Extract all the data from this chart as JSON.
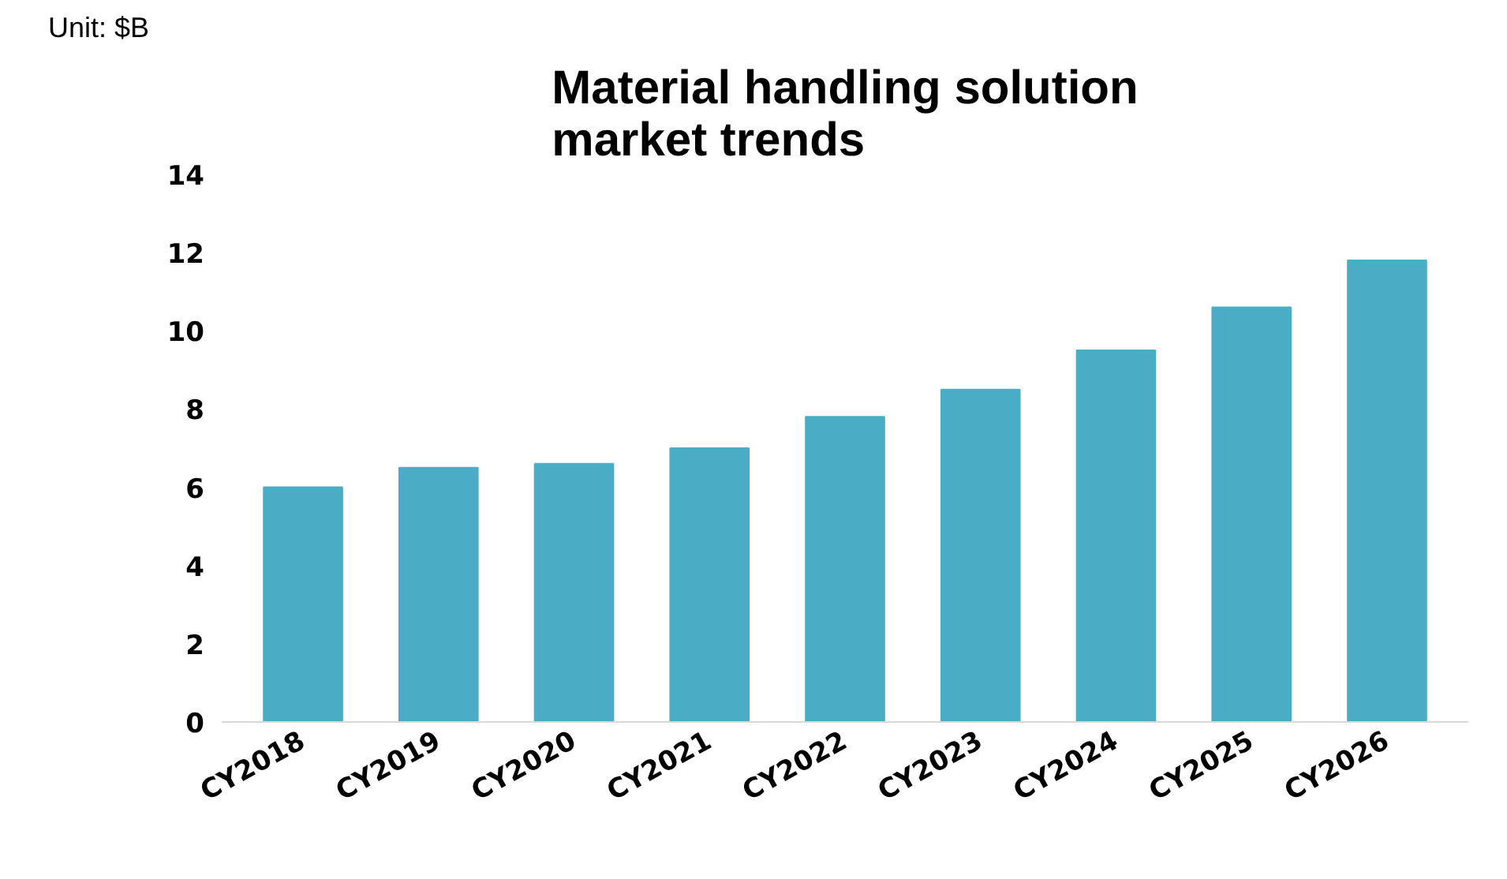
{
  "chart_data": {
    "type": "bar",
    "title": "Material handling solution\nmarket trends",
    "annotations": [
      "Unit: $B"
    ],
    "categories": [
      "CY2018",
      "CY2019",
      "CY2020",
      "CY2021",
      "CY2022",
      "CY2023",
      "CY2024",
      "CY2025",
      "CY2026"
    ],
    "values": [
      6.0,
      6.5,
      6.6,
      7.0,
      7.8,
      8.5,
      9.5,
      10.6,
      11.8
    ],
    "color": "#4bacc6",
    "ylim": [
      0,
      14
    ],
    "yticks": [
      0,
      2,
      4,
      6,
      8,
      10,
      12,
      14
    ],
    "grid": false
  }
}
